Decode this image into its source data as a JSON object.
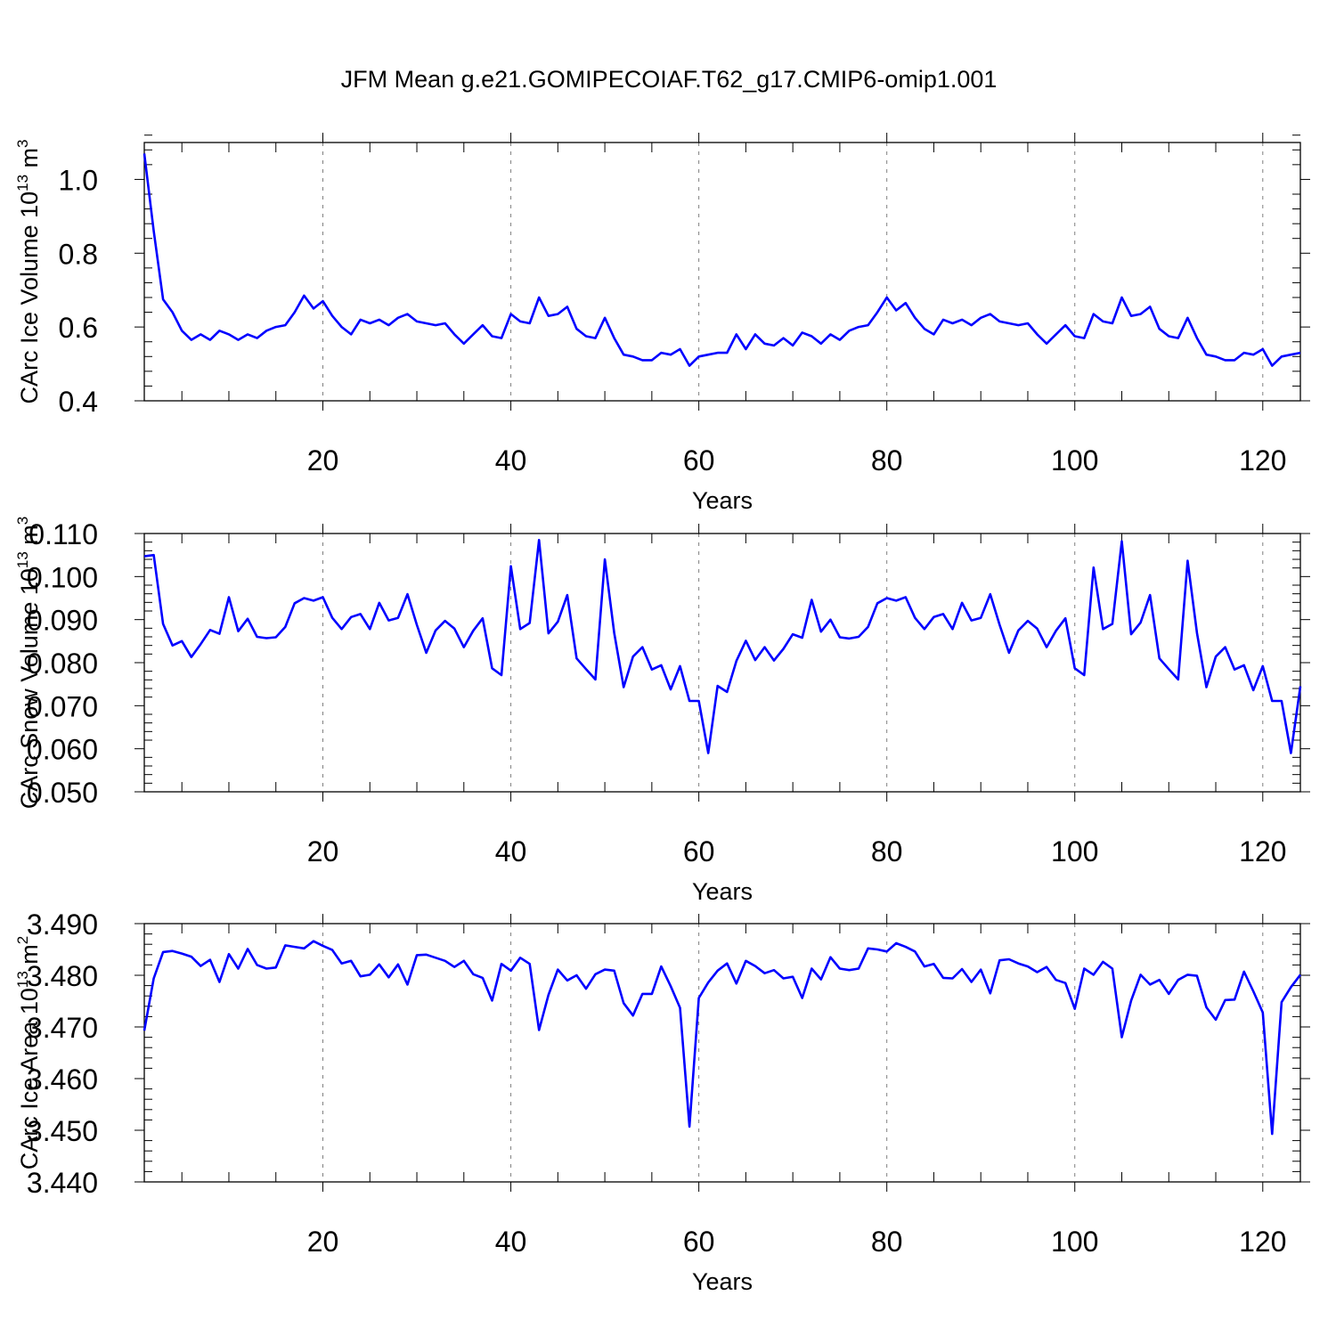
{
  "title": "JFM Mean g.e21.GOMIPECOIAF.T62_g17.CMIP6-omip1.001",
  "colors": {
    "line": "#0000ff",
    "axis": "#000000",
    "grid": "#808080"
  },
  "chart_data": [
    {
      "type": "line",
      "xlabel": "Years",
      "ylabel_main": "CArc Ice Volume 10",
      "ylabel_exp": "13",
      "ylabel_unit": " m",
      "ylabel_unit_exp": "3",
      "xlim": [
        1,
        124
      ],
      "ylim": [
        0.4,
        1.1
      ],
      "xticks": [
        20,
        40,
        60,
        80,
        100,
        120
      ],
      "xtick_labels": [
        "20",
        "40",
        "60",
        "80",
        "100",
        "120"
      ],
      "yticks": [
        0.4,
        0.6,
        0.8,
        1.0
      ],
      "ytick_labels": [
        "0.4",
        "0.6",
        "0.8",
        "1.0"
      ],
      "grid": "vertical dashed at major x ticks",
      "series": [
        {
          "x_start": 1,
          "values": [
            1.07,
            0.86,
            0.675,
            0.64,
            0.59,
            0.565,
            0.58,
            0.565,
            0.59,
            0.58,
            0.565,
            0.58,
            0.57,
            0.59,
            0.6,
            0.605,
            0.64,
            0.685,
            0.65,
            0.67,
            0.63,
            0.6,
            0.58,
            0.62,
            0.61,
            0.62,
            0.605,
            0.625,
            0.635,
            0.615,
            0.61,
            0.605,
            0.61,
            0.58,
            0.555,
            0.58,
            0.605,
            0.575,
            0.57,
            0.635,
            0.615,
            0.61,
            0.68,
            0.63,
            0.635,
            0.655,
            0.595,
            0.575,
            0.57,
            0.625,
            0.57,
            0.525,
            0.52,
            0.51,
            0.51,
            0.53,
            0.525,
            0.54,
            0.495,
            0.52,
            0.525,
            0.53,
            0.53,
            0.58,
            0.54,
            0.58,
            0.555,
            0.55,
            0.57,
            0.55,
            0.585,
            0.575,
            0.555,
            0.58,
            0.565,
            0.59,
            0.6,
            0.605,
            0.64,
            0.68,
            0.645,
            0.665,
            0.625,
            0.595,
            0.58,
            0.62,
            0.61,
            0.62,
            0.605,
            0.625,
            0.635,
            0.615,
            0.61,
            0.605,
            0.61,
            0.58,
            0.555,
            0.58,
            0.605,
            0.575,
            0.57,
            0.635,
            0.615,
            0.61,
            0.68,
            0.63,
            0.635,
            0.655,
            0.595,
            0.575,
            0.57,
            0.625,
            0.57,
            0.525,
            0.52,
            0.51,
            0.51,
            0.53,
            0.525,
            0.54,
            0.495,
            0.52,
            0.525,
            0.53
          ]
        }
      ]
    },
    {
      "type": "line",
      "xlabel": "Years",
      "ylabel_main": "CArc Snow Volume 10",
      "ylabel_exp": "13",
      "ylabel_unit": " m",
      "ylabel_unit_exp": "3",
      "xlim": [
        1,
        124
      ],
      "ylim": [
        0.05,
        0.11
      ],
      "xticks": [
        20,
        40,
        60,
        80,
        100,
        120
      ],
      "xtick_labels": [
        "20",
        "40",
        "60",
        "80",
        "100",
        "120"
      ],
      "yticks": [
        0.05,
        0.06,
        0.07,
        0.08,
        0.09,
        0.1,
        0.11
      ],
      "ytick_labels": [
        "0.050",
        "0.060",
        "0.070",
        "0.080",
        "0.090",
        "0.100",
        "0.110"
      ],
      "grid": "vertical dashed at major x ticks",
      "series": [
        {
          "x_start": 1,
          "values": [
            0.1047,
            0.105,
            0.089,
            0.084,
            0.085,
            0.0813,
            0.0843,
            0.0876,
            0.0867,
            0.0952,
            0.0873,
            0.0902,
            0.086,
            0.0857,
            0.0859,
            0.0883,
            0.0938,
            0.095,
            0.0944,
            0.0952,
            0.0904,
            0.0878,
            0.0906,
            0.0913,
            0.0878,
            0.0939,
            0.0898,
            0.0904,
            0.0959,
            0.0888,
            0.0823,
            0.0875,
            0.0897,
            0.0879,
            0.0836,
            0.0874,
            0.0903,
            0.0787,
            0.0771,
            0.1024,
            0.0878,
            0.0892,
            0.1085,
            0.0868,
            0.0895,
            0.0957,
            0.081,
            0.0785,
            0.0761,
            0.104,
            0.0869,
            0.0743,
            0.0814,
            0.0836,
            0.0784,
            0.0794,
            0.0738,
            0.0792,
            0.0711,
            0.0711,
            0.059,
            0.0746,
            0.0732,
            0.0804,
            0.0851,
            0.0806,
            0.0836,
            0.0805,
            0.0832,
            0.0866,
            0.0858,
            0.0946,
            0.0872,
            0.09,
            0.0859,
            0.0856,
            0.086,
            0.0883,
            0.0938,
            0.095,
            0.0944,
            0.0952,
            0.0904,
            0.0878,
            0.0906,
            0.0913,
            0.0878,
            0.0939,
            0.0898,
            0.0904,
            0.0959,
            0.0888,
            0.0823,
            0.0875,
            0.0897,
            0.0879,
            0.0836,
            0.0874,
            0.0903,
            0.0787,
            0.0771,
            0.1021,
            0.0878,
            0.089,
            0.1082,
            0.0866,
            0.0893,
            0.0957,
            0.081,
            0.0785,
            0.0761,
            0.1037,
            0.0869,
            0.0743,
            0.0814,
            0.0836,
            0.0784,
            0.0794,
            0.0736,
            0.0792,
            0.0711,
            0.0711,
            0.059,
            0.0745
          ]
        }
      ]
    },
    {
      "type": "line",
      "xlabel": "Years",
      "ylabel_main": "CArc Ice Area 10",
      "ylabel_exp": "13",
      "ylabel_unit": " m",
      "ylabel_unit_exp": "2",
      "xlim": [
        1,
        124
      ],
      "ylim": [
        3.44,
        3.49
      ],
      "xticks": [
        20,
        40,
        60,
        80,
        100,
        120
      ],
      "xtick_labels": [
        "20",
        "40",
        "60",
        "80",
        "100",
        "120"
      ],
      "yticks": [
        3.44,
        3.45,
        3.46,
        3.47,
        3.48,
        3.49
      ],
      "ytick_labels": [
        "3.440",
        "3.450",
        "3.460",
        "3.470",
        "3.480",
        "3.490"
      ],
      "grid": "vertical dashed at major x ticks",
      "series": [
        {
          "x_start": 1,
          "values": [
            3.4693,
            3.4794,
            3.4845,
            3.4847,
            3.4842,
            3.4836,
            3.4818,
            3.483,
            3.4787,
            3.4841,
            3.4813,
            3.4851,
            3.482,
            3.4813,
            3.4815,
            3.4858,
            3.4855,
            3.4852,
            3.4866,
            3.4857,
            3.4849,
            3.4823,
            3.4828,
            3.4798,
            3.4801,
            3.4821,
            3.4796,
            3.4821,
            3.4782,
            3.4839,
            3.484,
            3.4834,
            3.4828,
            3.4816,
            3.4828,
            3.4802,
            3.4795,
            3.4751,
            3.4822,
            3.4809,
            3.4834,
            3.4822,
            3.4694,
            3.4762,
            3.4811,
            3.479,
            3.48,
            3.4774,
            3.4802,
            3.4811,
            3.4809,
            3.4746,
            3.4722,
            3.4764,
            3.4764,
            3.4817,
            3.4779,
            3.4737,
            3.4507,
            3.4756,
            3.4786,
            3.4809,
            3.4823,
            3.4784,
            3.4828,
            3.4818,
            3.4804,
            3.481,
            3.4794,
            3.4797,
            3.4756,
            3.4813,
            3.4792,
            3.4835,
            3.4813,
            3.481,
            3.4813,
            3.4852,
            3.485,
            3.4846,
            3.4862,
            3.4855,
            3.4846,
            3.4817,
            3.4822,
            3.4795,
            3.4794,
            3.4812,
            3.4787,
            3.4811,
            3.4765,
            3.4829,
            3.4831,
            3.4823,
            3.4817,
            3.4806,
            3.4816,
            3.4791,
            3.4785,
            3.4735,
            3.4813,
            3.4801,
            3.4826,
            3.4813,
            3.468,
            3.4751,
            3.4801,
            3.4782,
            3.4791,
            3.4764,
            3.4791,
            3.4801,
            3.4799,
            3.4738,
            3.4714,
            3.4752,
            3.4753,
            3.4807,
            3.4769,
            3.4728,
            3.4493,
            3.4748,
            3.4777,
            3.4801
          ]
        }
      ]
    }
  ]
}
